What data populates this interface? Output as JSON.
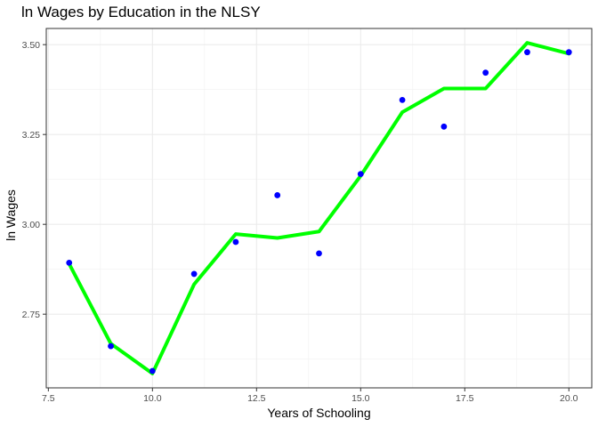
{
  "chart_data": {
    "type": "scatter",
    "title": "ln Wages by Education in the NLSY",
    "xlabel": "Years of Schooling",
    "ylabel": "ln Wages",
    "xlim": [
      7.45,
      20.55
    ],
    "ylim": [
      2.545,
      3.545
    ],
    "x_ticks": [
      "7.5",
      "10.0",
      "12.5",
      "15.0",
      "17.5",
      "20.0"
    ],
    "x_tick_values": [
      7.5,
      10.0,
      12.5,
      15.0,
      17.5,
      20.0
    ],
    "y_ticks": [
      "2.75",
      "3.00",
      "3.25",
      "3.50"
    ],
    "y_tick_values": [
      2.75,
      3.0,
      3.25,
      3.5
    ],
    "grid": true,
    "series": [
      {
        "type": "scatter",
        "color": "#0000ff",
        "x": [
          8,
          9,
          10,
          11,
          12,
          13,
          14,
          15,
          16,
          17,
          18,
          19,
          20
        ],
        "y": [
          2.893,
          2.661,
          2.592,
          2.862,
          2.951,
          3.081,
          2.919,
          3.14,
          3.346,
          3.272,
          3.422,
          3.479,
          3.479
        ]
      },
      {
        "type": "line",
        "color": "#00ff00",
        "x": [
          8,
          9,
          10,
          11,
          12,
          13,
          14,
          15,
          16,
          17,
          18,
          19,
          20
        ],
        "y": [
          2.89,
          2.668,
          2.585,
          2.833,
          2.973,
          2.962,
          2.98,
          3.135,
          3.312,
          3.378,
          3.378,
          3.505,
          3.475
        ]
      }
    ]
  }
}
